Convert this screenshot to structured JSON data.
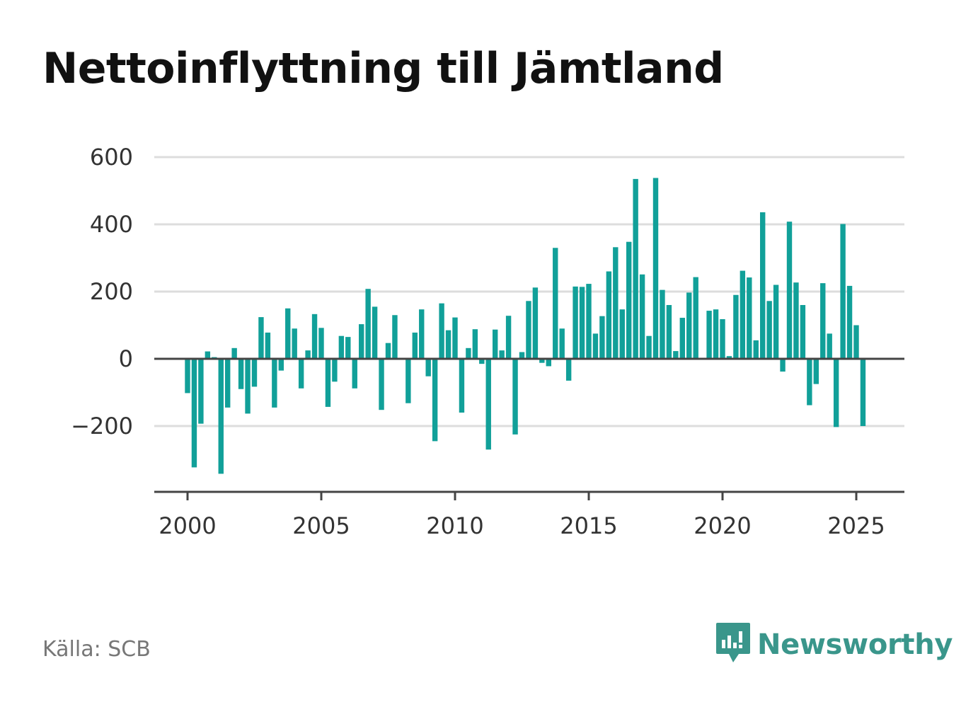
{
  "title": "Nettoinflyttning till Jämtland",
  "source": "Källa: SCB",
  "brand": {
    "name": "Newsworthy",
    "icon": "bar-chart-speech-icon",
    "color": "#3a968b"
  },
  "colors": {
    "bar": "#11a099",
    "grid": "#dddddd",
    "axis": "#444444",
    "zero": "#444444"
  },
  "chart_data": {
    "type": "bar",
    "title": "Nettoinflyttning till Jämtland",
    "xlabel": "",
    "ylabel": "",
    "x_start": 2000,
    "periods_per_year": 4,
    "ylim": [
      -395,
      600
    ],
    "yticks": [
      -200,
      0,
      200,
      400,
      600
    ],
    "ytick_labels": [
      "−200",
      "0",
      "200",
      "400",
      "600"
    ],
    "xticks": [
      2000,
      2005,
      2010,
      2015,
      2020,
      2025
    ],
    "xtick_labels": [
      "2000",
      "2005",
      "2010",
      "2015",
      "2020",
      "2025"
    ],
    "grid": true,
    "values": [
      -102,
      -323,
      -193,
      22,
      5,
      -342,
      -145,
      32,
      -90,
      -163,
      -83,
      124,
      78,
      -145,
      -35,
      150,
      90,
      -88,
      25,
      133,
      92,
      -143,
      -68,
      68,
      65,
      -88,
      103,
      208,
      155,
      -152,
      47,
      130,
      0,
      -132,
      78,
      147,
      -52,
      -245,
      165,
      85,
      123,
      -160,
      32,
      88,
      -15,
      -270,
      87,
      25,
      128,
      -225,
      20,
      172,
      212,
      -12,
      -22,
      330,
      90,
      -65,
      215,
      214,
      223,
      75,
      127,
      260,
      332,
      147,
      348,
      535,
      251,
      68,
      538,
      205,
      160,
      23,
      122,
      197,
      243,
      0,
      143,
      147,
      118,
      8,
      190,
      262,
      242,
      55,
      436,
      172,
      220,
      -38,
      408,
      227,
      160,
      -138,
      -75,
      225,
      75,
      -203,
      401,
      217,
      100,
      -200
    ]
  }
}
